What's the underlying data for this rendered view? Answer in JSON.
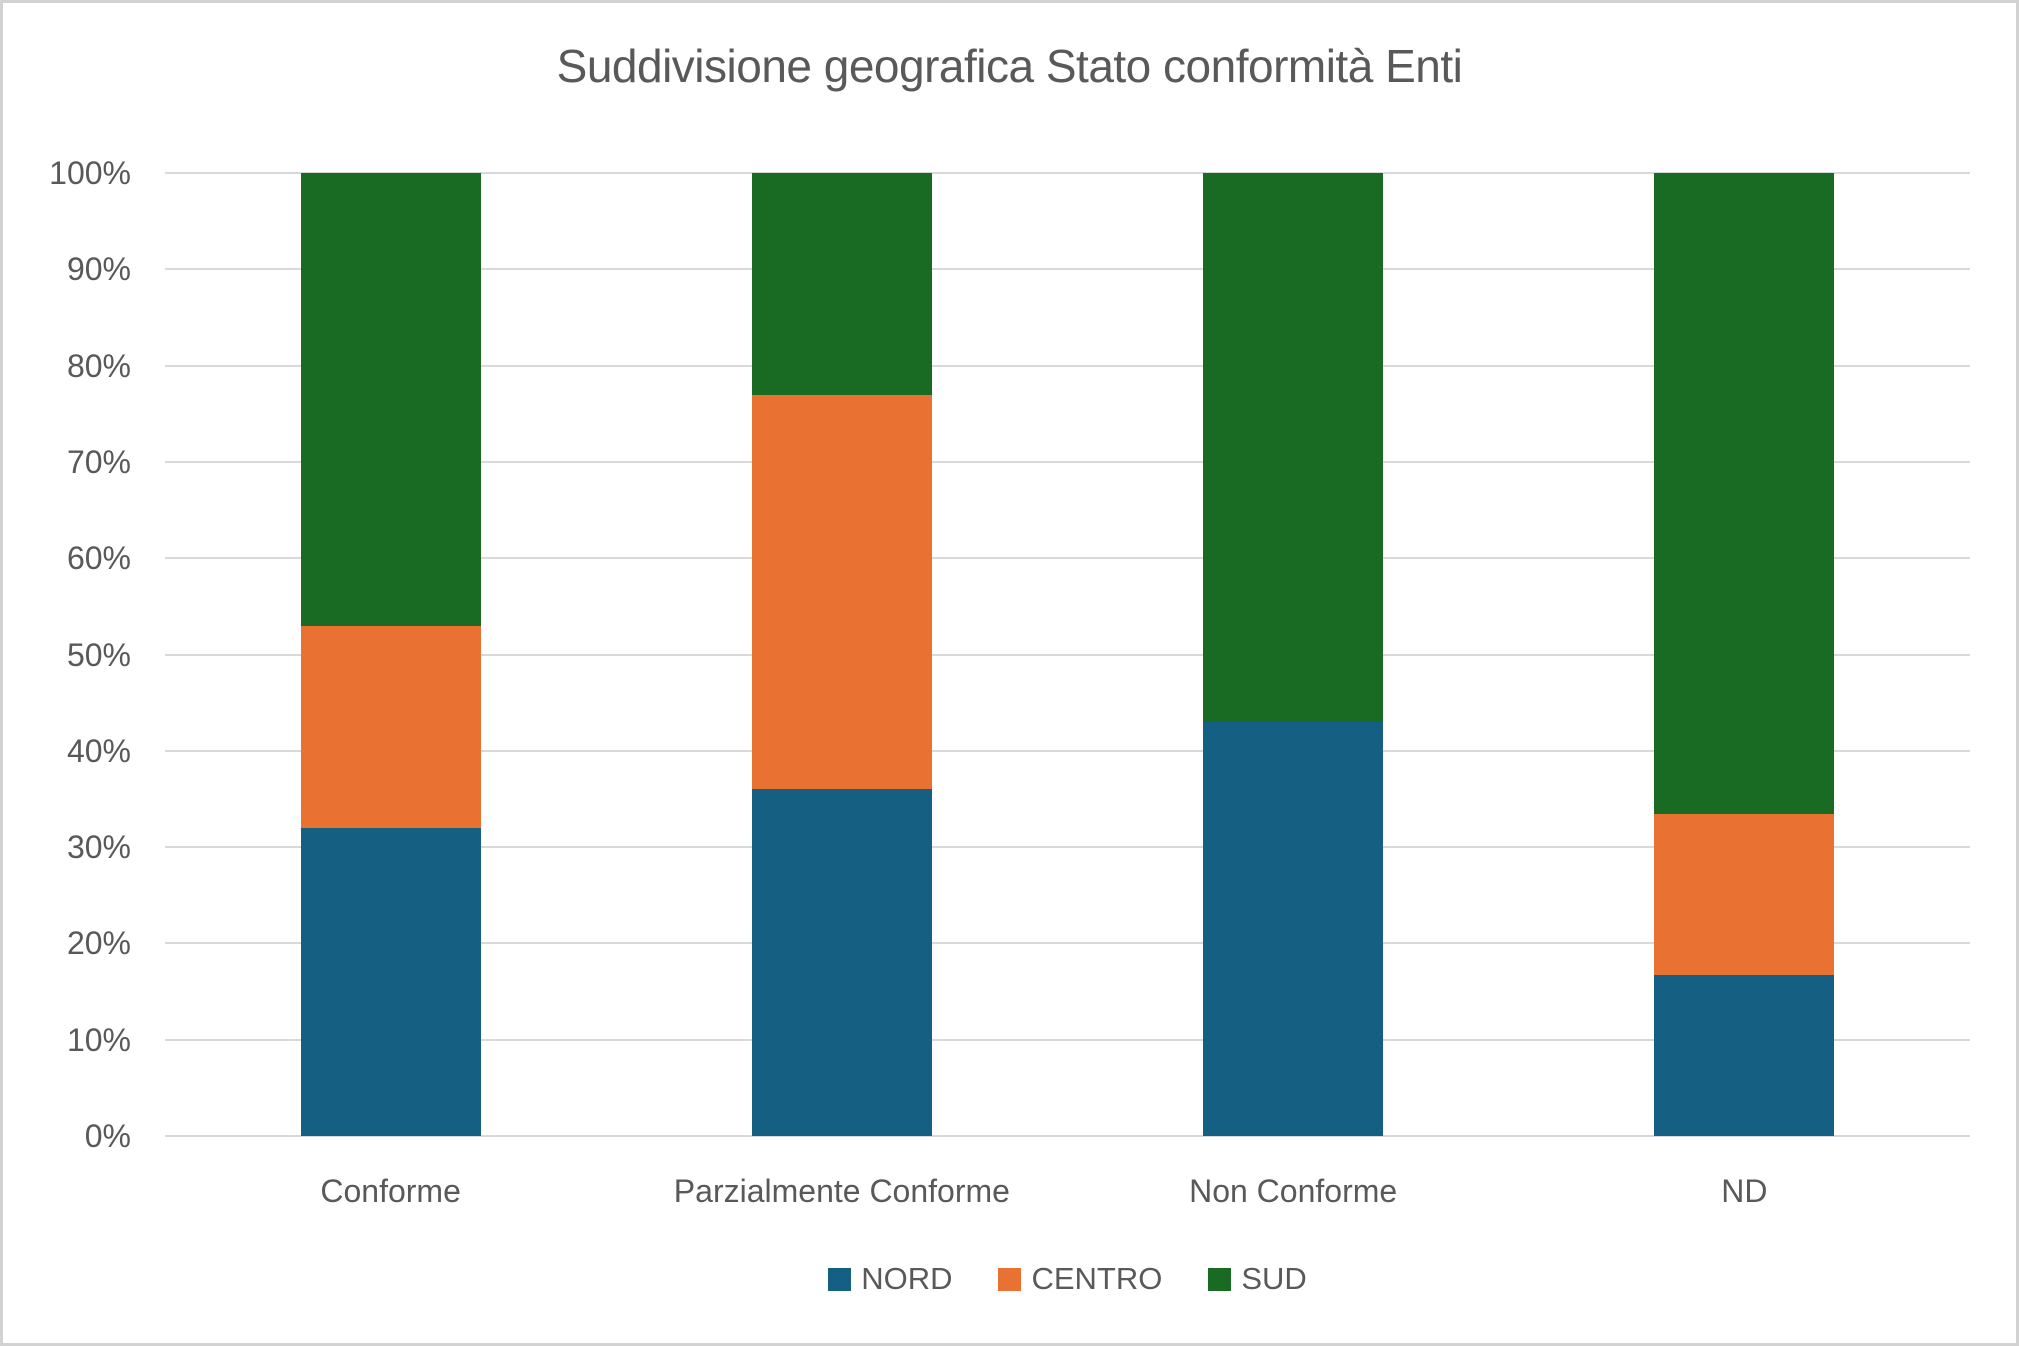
{
  "chart_data": {
    "type": "bar",
    "subtype": "stacked-100-percent",
    "title": "Suddivisione geografica Stato conformità Enti",
    "xlabel": "",
    "ylabel": "",
    "categories": [
      "Conforme",
      "Parzialmente Conforme",
      "Non Conforme",
      "ND"
    ],
    "series": [
      {
        "name": "NORD",
        "color": "#156082",
        "values": [
          32,
          36,
          43,
          16.7
        ]
      },
      {
        "name": "CENTRO",
        "color": "#E97132",
        "values": [
          21,
          41,
          0,
          16.7
        ]
      },
      {
        "name": "SUD",
        "color": "#196B24",
        "values": [
          47,
          23,
          57,
          66.6
        ]
      }
    ],
    "y_axis": {
      "min": 0,
      "max": 100,
      "unit": "%",
      "ticks": [
        {
          "value": 0,
          "label": "0%"
        },
        {
          "value": 10,
          "label": "10%"
        },
        {
          "value": 20,
          "label": "20%"
        },
        {
          "value": 30,
          "label": "30%"
        },
        {
          "value": 40,
          "label": "40%"
        },
        {
          "value": 50,
          "label": "50%"
        },
        {
          "value": 60,
          "label": "60%"
        },
        {
          "value": 70,
          "label": "70%"
        },
        {
          "value": 80,
          "label": "80%"
        },
        {
          "value": 90,
          "label": "90%"
        },
        {
          "value": 100,
          "label": "100%"
        }
      ]
    },
    "grid": true,
    "legend_position": "bottom",
    "legend": [
      "NORD",
      "CENTRO",
      "SUD"
    ]
  },
  "colors": {
    "text": "#595959",
    "grid": "#D9D9D9",
    "background": "#FFFFFF",
    "page_border": "#D2D2D2"
  }
}
